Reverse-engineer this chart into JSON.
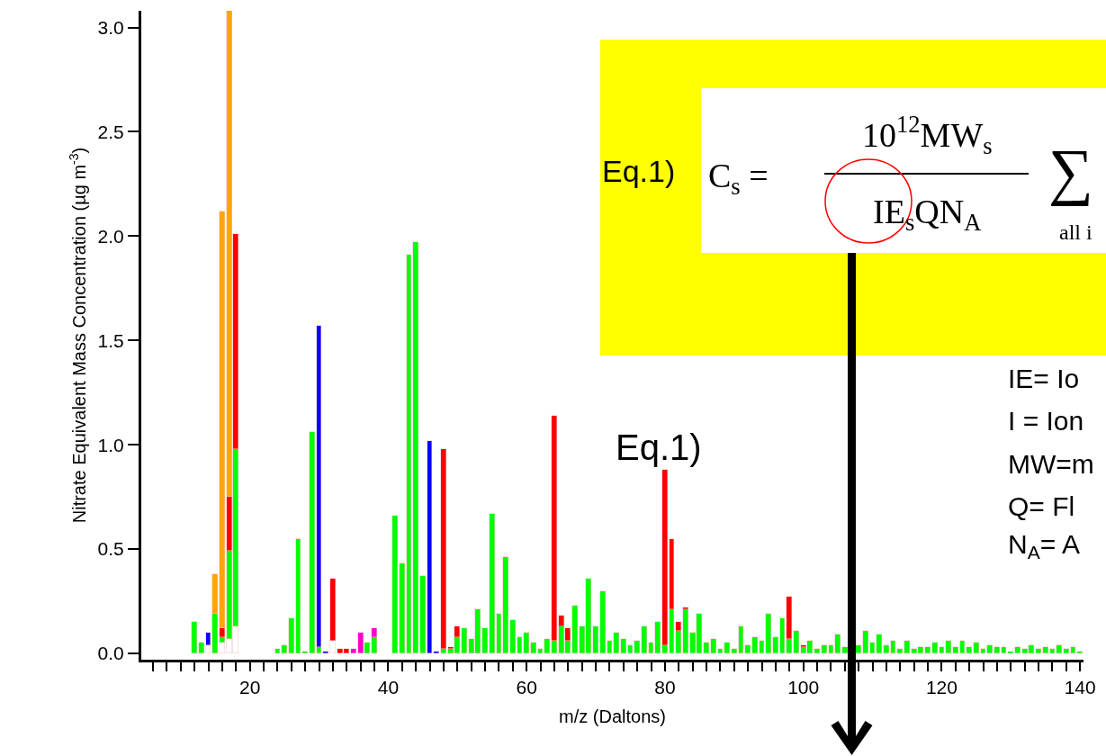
{
  "chart_data": {
    "type": "bar",
    "stacked": true,
    "xlabel": "m/z (Daltons)",
    "ylabel": "Nitrate Equivalent Mass Concentration (µg m$^{-3}$)",
    "x": [
      12,
      13,
      14,
      15,
      16,
      17,
      18,
      19,
      20,
      21,
      22,
      23,
      24,
      25,
      26,
      27,
      28,
      29,
      30,
      31,
      32,
      33,
      34,
      35,
      36,
      37,
      38,
      39,
      40,
      41,
      42,
      43,
      44,
      45,
      46,
      47,
      48,
      49,
      50,
      51,
      52,
      53,
      54,
      55,
      56,
      57,
      58,
      59,
      60,
      61,
      62,
      63,
      64,
      65,
      66,
      67,
      68,
      69,
      70,
      71,
      72,
      73,
      74,
      75,
      76,
      77,
      78,
      79,
      80,
      81,
      82,
      83,
      84,
      85,
      86,
      87,
      88,
      89,
      90,
      91,
      92,
      93,
      94,
      95,
      96,
      97,
      98,
      99,
      100,
      101,
      102,
      103,
      104,
      105,
      106,
      107,
      108,
      109,
      110,
      111,
      112,
      113,
      114,
      115,
      116,
      117,
      118,
      119,
      120,
      121,
      122,
      123,
      124,
      125,
      126,
      127,
      128,
      129,
      130,
      131,
      132,
      133,
      134,
      135,
      136,
      137,
      138,
      139,
      140
    ],
    "series": [
      {
        "color": "#ffffff",
        "values": [
          null,
          null,
          0.04,
          null,
          0.05,
          0.07,
          0.13,
          null,
          null,
          null,
          null,
          null,
          null,
          null,
          null,
          null,
          null,
          null,
          null,
          null,
          0.06,
          null,
          null,
          null,
          null,
          null,
          null,
          null,
          null,
          null,
          null,
          null,
          null,
          null,
          null,
          null,
          null,
          null,
          null,
          null,
          null,
          null,
          null,
          null,
          null,
          null,
          null,
          null,
          null,
          null,
          null,
          null,
          null,
          null,
          null,
          null,
          null,
          null,
          null,
          null,
          null,
          null,
          null,
          null,
          null,
          null,
          null,
          null,
          null,
          null,
          null,
          null,
          null,
          null,
          null,
          null,
          null,
          null,
          null,
          null,
          null,
          null,
          null,
          null,
          null,
          null,
          null,
          null,
          null,
          null,
          null,
          null,
          null,
          null,
          null,
          null,
          null,
          null,
          null,
          null,
          null,
          null,
          null,
          null,
          null,
          null,
          null,
          null,
          null,
          null,
          null,
          null,
          null,
          null,
          null,
          null,
          null,
          null,
          null,
          null,
          null,
          null,
          null,
          null,
          null,
          null,
          null,
          null,
          null
        ]
      },
      {
        "color": "#00ff00",
        "values": [
          0.15,
          0.05,
          null,
          0.19,
          0.03,
          0.42,
          0.85,
          null,
          null,
          null,
          null,
          null,
          0.02,
          0.04,
          0.17,
          0.55,
          0.01,
          1.06,
          0.03,
          null,
          null,
          null,
          null,
          null,
          null,
          0.05,
          0.08,
          null,
          null,
          0.66,
          0.43,
          1.91,
          1.97,
          0.37,
          null,
          null,
          0.02,
          0.02,
          0.08,
          0.12,
          0.07,
          0.21,
          0.12,
          0.67,
          0.19,
          0.46,
          0.16,
          0.08,
          0.1,
          0.05,
          0.02,
          0.07,
          0.06,
          0.13,
          0.06,
          0.23,
          0.13,
          0.36,
          0.13,
          0.3,
          0.06,
          0.1,
          0.07,
          0.04,
          0.06,
          0.13,
          0.05,
          0.15,
          0.04,
          0.21,
          0.11,
          0.21,
          0.1,
          0.19,
          0.05,
          0.07,
          0.02,
          0.05,
          0.02,
          0.13,
          0.04,
          0.08,
          0.06,
          0.19,
          0.08,
          0.17,
          0.07,
          0.11,
          0.03,
          0.06,
          0.02,
          0.04,
          0.04,
          0.09,
          0.03,
          null,
          0.04,
          0.11,
          0.05,
          0.09,
          0.04,
          0.06,
          0.02,
          0.06,
          0.02,
          0.03,
          0.03,
          0.05,
          0.03,
          0.06,
          0.03,
          0.06,
          0.03,
          0.05,
          0.02,
          0.04,
          0.03,
          0.03,
          0.01,
          0.03,
          0.02,
          0.04,
          0.02,
          0.03,
          0.02,
          0.04,
          0.02,
          0.03,
          0.01
        ]
      },
      {
        "color": "#ff0000",
        "values": [
          null,
          null,
          null,
          null,
          0.04,
          0.26,
          1.03,
          null,
          null,
          null,
          null,
          null,
          null,
          null,
          null,
          null,
          null,
          null,
          null,
          null,
          0.3,
          0.02,
          0.02,
          null,
          null,
          null,
          null,
          null,
          null,
          null,
          null,
          null,
          null,
          null,
          null,
          null,
          0.96,
          0.01,
          0.05,
          null,
          null,
          null,
          null,
          null,
          null,
          null,
          null,
          null,
          null,
          null,
          null,
          null,
          1.08,
          0.05,
          0.06,
          null,
          null,
          null,
          null,
          null,
          null,
          null,
          null,
          null,
          null,
          null,
          null,
          null,
          0.84,
          0.34,
          0.04,
          0.01,
          null,
          null,
          null,
          null,
          null,
          null,
          null,
          null,
          null,
          null,
          null,
          null,
          null,
          null,
          0.2,
          null,
          0.01,
          null,
          null,
          null,
          null,
          null,
          null,
          null,
          null,
          null,
          null,
          null,
          null,
          null,
          null,
          null,
          null,
          null,
          null,
          null,
          null,
          null,
          null,
          null,
          null,
          null,
          null,
          null,
          null,
          null,
          null,
          null,
          null,
          null,
          null,
          null,
          null,
          null,
          null,
          null,
          null
        ]
      },
      {
        "color": "#0000ff",
        "values": [
          null,
          null,
          0.06,
          null,
          null,
          null,
          null,
          null,
          null,
          null,
          null,
          null,
          null,
          null,
          null,
          null,
          null,
          null,
          1.54,
          0.01,
          null,
          null,
          null,
          null,
          null,
          null,
          null,
          null,
          null,
          null,
          null,
          null,
          null,
          null,
          1.02,
          0.01,
          null,
          null,
          null,
          null,
          null,
          null,
          null,
          null,
          null,
          null,
          null,
          null,
          null,
          null,
          null,
          null,
          null,
          null,
          null,
          null,
          null,
          null,
          null,
          null,
          null,
          null,
          null,
          null,
          null,
          null,
          null,
          null,
          null,
          null,
          null,
          null,
          null,
          null,
          null,
          null,
          null,
          null,
          null,
          null,
          null,
          null,
          null,
          null,
          null,
          null,
          null,
          null,
          null,
          null,
          null,
          null,
          null,
          null,
          null,
          null,
          null,
          null,
          null,
          null,
          null,
          null,
          null,
          null,
          null,
          null,
          null,
          null,
          null,
          null,
          null,
          null,
          null,
          null,
          null,
          null,
          null,
          null,
          null,
          null,
          null,
          null,
          null,
          null,
          null,
          null,
          null,
          null,
          null
        ]
      },
      {
        "color": "#ff00cc",
        "values": [
          null,
          null,
          null,
          null,
          null,
          null,
          null,
          null,
          null,
          null,
          null,
          null,
          null,
          null,
          null,
          null,
          null,
          null,
          null,
          null,
          null,
          null,
          null,
          0.02,
          0.1,
          null,
          0.04,
          null,
          null,
          null,
          null,
          null,
          null,
          null,
          null,
          null,
          null,
          null,
          null,
          null,
          null,
          null,
          null,
          null,
          null,
          null,
          null,
          null,
          null,
          null,
          null,
          null,
          null,
          null,
          null,
          null,
          null,
          null,
          null,
          null,
          null,
          null,
          null,
          null,
          null,
          null,
          null,
          null,
          null,
          null,
          null,
          null,
          null,
          null,
          null,
          null,
          null,
          null,
          null,
          null,
          null,
          null,
          null,
          null,
          null,
          null,
          null,
          null,
          null,
          null,
          null,
          null,
          null,
          null,
          null,
          null,
          null,
          null,
          null,
          null,
          null,
          null,
          null,
          null,
          null,
          null,
          null,
          null,
          null,
          null,
          null,
          null,
          null,
          null,
          null,
          null,
          null,
          null,
          null,
          null,
          null,
          null,
          null,
          null,
          null,
          null,
          null,
          null,
          null
        ]
      },
      {
        "color": "#ffa500",
        "values": [
          null,
          null,
          null,
          0.19,
          2.0,
          2.33,
          null,
          null,
          null,
          null,
          null,
          null,
          null,
          null,
          null,
          null,
          null,
          null,
          null,
          null,
          null,
          null,
          null,
          null,
          null,
          null,
          null,
          null,
          null,
          null,
          null,
          null,
          null,
          null,
          null,
          null,
          null,
          null,
          null,
          null,
          null,
          null,
          null,
          null,
          null,
          null,
          null,
          null,
          null,
          null,
          null,
          null,
          null,
          null,
          null,
          null,
          null,
          null,
          null,
          null,
          null,
          null,
          null,
          null,
          null,
          null,
          null,
          null,
          null,
          null,
          null,
          null,
          null,
          null,
          null,
          null,
          null,
          null,
          null,
          null,
          null,
          null,
          null,
          null,
          null,
          null,
          null,
          null,
          null,
          null,
          null,
          null,
          null,
          null,
          null,
          null,
          null,
          null,
          null,
          null,
          null,
          null,
          null,
          null,
          null,
          null,
          null,
          null,
          null,
          null,
          null,
          null,
          null,
          null,
          null,
          null,
          null,
          null,
          null,
          null,
          null,
          null,
          null,
          null,
          null,
          null,
          null,
          null,
          null
        ]
      }
    ],
    "xlim": [
      4.3,
      140.5
    ],
    "ylim": [
      -0.03,
      3.08
    ],
    "xticks": [
      {
        "value": 6,
        "label": null
      },
      {
        "value": 8,
        "label": null
      },
      {
        "value": 10,
        "label": null
      },
      {
        "value": 12,
        "label": null
      },
      {
        "value": 14,
        "label": null
      },
      {
        "value": 16,
        "label": null
      },
      {
        "value": 18,
        "label": null
      },
      20,
      {
        "value": 22,
        "label": null
      },
      {
        "value": 24,
        "label": null
      },
      {
        "value": 26,
        "label": null
      },
      {
        "value": 28,
        "label": null
      },
      {
        "value": 30,
        "label": null
      },
      {
        "value": 32,
        "label": null
      },
      {
        "value": 34,
        "label": null
      },
      {
        "value": 36,
        "label": null
      },
      {
        "value": 38,
        "label": null
      },
      40,
      {
        "value": 42,
        "label": null
      },
      {
        "value": 44,
        "label": null
      },
      {
        "value": 46,
        "label": null
      },
      {
        "value": 48,
        "label": null
      },
      {
        "value": 50,
        "label": null
      },
      {
        "value": 52,
        "label": null
      },
      {
        "value": 54,
        "label": null
      },
      {
        "value": 56,
        "label": null
      },
      {
        "value": 58,
        "label": null
      },
      60,
      {
        "value": 62,
        "label": null
      },
      {
        "value": 64,
        "label": null
      },
      {
        "value": 66,
        "label": null
      },
      {
        "value": 68,
        "label": null
      },
      {
        "value": 70,
        "label": null
      },
      {
        "value": 72,
        "label": null
      },
      {
        "value": 74,
        "label": null
      },
      {
        "value": 76,
        "label": null
      },
      {
        "value": 78,
        "label": null
      },
      80,
      {
        "value": 82,
        "label": null
      },
      {
        "value": 84,
        "label": null
      },
      {
        "value": 86,
        "label": null
      },
      {
        "value": 88,
        "label": null
      },
      {
        "value": 90,
        "label": null
      },
      {
        "value": 92,
        "label": null
      },
      {
        "value": 94,
        "label": null
      },
      {
        "value": 96,
        "label": null
      },
      {
        "value": 98,
        "label": null
      },
      100,
      {
        "value": 102,
        "label": null
      },
      {
        "value": 104,
        "label": null
      },
      {
        "value": 106,
        "label": null
      },
      {
        "value": 108,
        "label": null
      },
      {
        "value": 110,
        "label": null
      },
      {
        "value": 112,
        "label": null
      },
      {
        "value": 114,
        "label": null
      },
      {
        "value": 116,
        "label": null
      },
      {
        "value": 118,
        "label": null
      },
      120,
      {
        "value": 122,
        "label": null
      },
      {
        "value": 124,
        "label": null
      },
      {
        "value": 126,
        "label": null
      },
      {
        "value": 128,
        "label": null
      },
      {
        "value": 130,
        "label": null
      },
      {
        "value": 132,
        "label": null
      },
      {
        "value": 134,
        "label": null
      },
      {
        "value": 136,
        "label": null
      },
      {
        "value": 138,
        "label": null
      },
      140
    ],
    "yticks": [
      {
        "value": 0,
        "label": "0.0"
      },
      {
        "value": 0.5,
        "label": "0.5"
      },
      {
        "value": 1,
        "label": "1.0"
      },
      {
        "value": 1.5,
        "label": "1.5"
      },
      {
        "value": 2,
        "label": "2.0"
      },
      {
        "value": 2.5,
        "label": "2.5"
      },
      {
        "value": 3,
        "label": "3.0"
      }
    ],
    "annotations": [
      "Eq.1)",
      "C$_{s}$ =",
      "10$^{12}$MW$_{s}$",
      "IE$_{s}$QN$_{A}$",
      "∑",
      "all i",
      "Eq.1)",
      "IE= Io",
      "I = Ion",
      "MW=m",
      "Q= Fl",
      "N$_{A}$= A"
    ]
  }
}
